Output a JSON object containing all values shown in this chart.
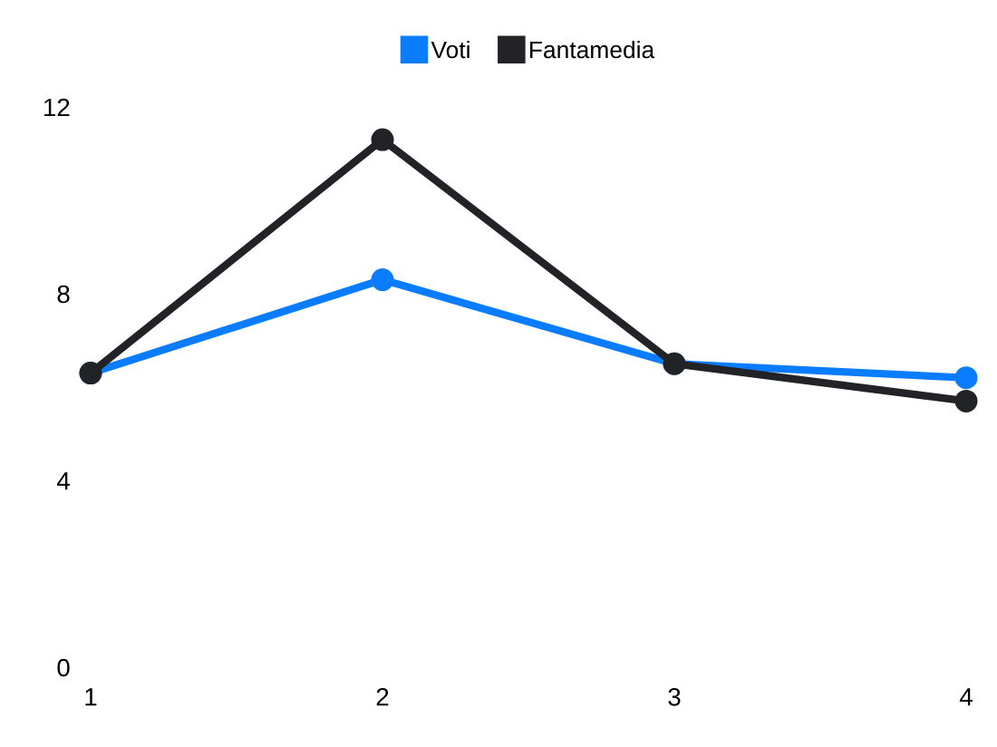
{
  "chart_data": {
    "type": "line",
    "x": [
      1,
      2,
      3,
      4
    ],
    "series": [
      {
        "name": "Voti",
        "color": "#0a7cff",
        "values": [
          6.3,
          8.3,
          6.5,
          6.2
        ]
      },
      {
        "name": "Fantamedia",
        "color": "#222326",
        "values": [
          6.3,
          11.3,
          6.5,
          5.7
        ]
      }
    ],
    "xlim": [
      1,
      4
    ],
    "xticks": [
      1,
      2,
      3,
      4
    ],
    "ylim": [
      0,
      12
    ],
    "yticks": [
      0,
      4,
      8,
      12
    ],
    "grid": false,
    "legend": "top",
    "marker": "circle",
    "line_style": "solid"
  }
}
